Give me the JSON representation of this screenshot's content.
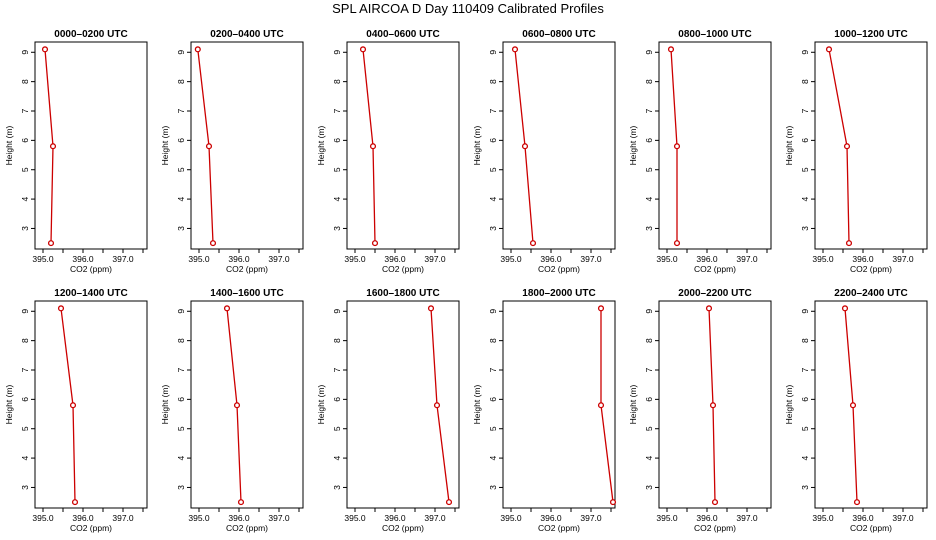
{
  "title": "SPL AIRCOA D  Day 110409  Calibrated Profiles",
  "style": {
    "series_color": "#cc0000",
    "axis_color": "#000000"
  },
  "chart_data": [
    {
      "type": "line",
      "title": "0000–0200 UTC",
      "xlabel": "CO2 (ppm)",
      "ylabel": "Height (m)",
      "xlim": [
        394.8,
        397.6
      ],
      "ylim": [
        2.3,
        9.35
      ],
      "xticks": [
        "395.0",
        "396.0",
        "397.0"
      ],
      "yticks": [
        "3",
        "4",
        "5",
        "6",
        "7",
        "8",
        "9"
      ],
      "series": [
        {
          "x": [
            395.2,
            395.25,
            395.05
          ],
          "y": [
            2.5,
            5.8,
            9.1
          ]
        }
      ]
    },
    {
      "type": "line",
      "title": "0200–0400 UTC",
      "xlabel": "CO2 (ppm)",
      "ylabel": "Height (m)",
      "xlim": [
        394.8,
        397.6
      ],
      "ylim": [
        2.3,
        9.35
      ],
      "xticks": [
        "395.0",
        "396.0",
        "397.0"
      ],
      "yticks": [
        "3",
        "4",
        "5",
        "6",
        "7",
        "8",
        "9"
      ],
      "series": [
        {
          "x": [
            395.35,
            395.25,
            394.97
          ],
          "y": [
            2.5,
            5.8,
            9.1
          ]
        }
      ]
    },
    {
      "type": "line",
      "title": "0400–0600 UTC",
      "xlabel": "CO2 (ppm)",
      "ylabel": "Height (m)",
      "xlim": [
        394.8,
        397.6
      ],
      "ylim": [
        2.3,
        9.35
      ],
      "xticks": [
        "395.0",
        "396.0",
        "397.0"
      ],
      "yticks": [
        "3",
        "4",
        "5",
        "6",
        "7",
        "8",
        "9"
      ],
      "series": [
        {
          "x": [
            395.5,
            395.45,
            395.2
          ],
          "y": [
            2.5,
            5.8,
            9.1
          ]
        }
      ]
    },
    {
      "type": "line",
      "title": "0600–0800 UTC",
      "xlabel": "CO2 (ppm)",
      "ylabel": "Height (m)",
      "xlim": [
        394.8,
        397.6
      ],
      "ylim": [
        2.3,
        9.35
      ],
      "xticks": [
        "395.0",
        "396.0",
        "397.0"
      ],
      "yticks": [
        "3",
        "4",
        "5",
        "6",
        "7",
        "8",
        "9"
      ],
      "series": [
        {
          "x": [
            395.55,
            395.35,
            395.1
          ],
          "y": [
            2.5,
            5.8,
            9.1
          ]
        }
      ]
    },
    {
      "type": "line",
      "title": "0800–1000 UTC",
      "xlabel": "CO2 (ppm)",
      "ylabel": "Height (m)",
      "xlim": [
        394.8,
        397.6
      ],
      "ylim": [
        2.3,
        9.35
      ],
      "xticks": [
        "395.0",
        "396.0",
        "397.0"
      ],
      "yticks": [
        "3",
        "4",
        "5",
        "6",
        "7",
        "8",
        "9"
      ],
      "series": [
        {
          "x": [
            395.25,
            395.25,
            395.1
          ],
          "y": [
            2.5,
            5.8,
            9.1
          ]
        }
      ]
    },
    {
      "type": "line",
      "title": "1000–1200 UTC",
      "xlabel": "CO2 (ppm)",
      "ylabel": "Height (m)",
      "xlim": [
        394.8,
        397.6
      ],
      "ylim": [
        2.3,
        9.35
      ],
      "xticks": [
        "395.0",
        "396.0",
        "397.0"
      ],
      "yticks": [
        "3",
        "4",
        "5",
        "6",
        "7",
        "8",
        "9"
      ],
      "series": [
        {
          "x": [
            395.65,
            395.6,
            395.15
          ],
          "y": [
            2.5,
            5.8,
            9.1
          ]
        }
      ]
    },
    {
      "type": "line",
      "title": "1200–1400 UTC",
      "xlabel": "CO2 (ppm)",
      "ylabel": "Height (m)",
      "xlim": [
        394.8,
        397.6
      ],
      "ylim": [
        2.3,
        9.35
      ],
      "xticks": [
        "395.0",
        "396.0",
        "397.0"
      ],
      "yticks": [
        "3",
        "4",
        "5",
        "6",
        "7",
        "8",
        "9"
      ],
      "series": [
        {
          "x": [
            395.8,
            395.75,
            395.45
          ],
          "y": [
            2.5,
            5.8,
            9.1
          ]
        }
      ]
    },
    {
      "type": "line",
      "title": "1400–1600 UTC",
      "xlabel": "CO2 (ppm)",
      "ylabel": "Height (m)",
      "xlim": [
        394.8,
        397.6
      ],
      "ylim": [
        2.3,
        9.35
      ],
      "xticks": [
        "395.0",
        "396.0",
        "397.0"
      ],
      "yticks": [
        "3",
        "4",
        "5",
        "6",
        "7",
        "8",
        "9"
      ],
      "series": [
        {
          "x": [
            396.05,
            395.95,
            395.7
          ],
          "y": [
            2.5,
            5.8,
            9.1
          ]
        }
      ]
    },
    {
      "type": "line",
      "title": "1600–1800 UTC",
      "xlabel": "CO2 (ppm)",
      "ylabel": "Height (m)",
      "xlim": [
        394.8,
        397.6
      ],
      "ylim": [
        2.3,
        9.35
      ],
      "xticks": [
        "395.0",
        "396.0",
        "397.0"
      ],
      "yticks": [
        "3",
        "4",
        "5",
        "6",
        "7",
        "8",
        "9"
      ],
      "series": [
        {
          "x": [
            397.35,
            397.05,
            396.9
          ],
          "y": [
            2.5,
            5.8,
            9.1
          ]
        }
      ]
    },
    {
      "type": "line",
      "title": "1800–2000 UTC",
      "xlabel": "CO2 (ppm)",
      "ylabel": "Height (m)",
      "xlim": [
        394.8,
        397.6
      ],
      "ylim": [
        2.3,
        9.35
      ],
      "xticks": [
        "395.0",
        "396.0",
        "397.0"
      ],
      "yticks": [
        "3",
        "4",
        "5",
        "6",
        "7",
        "8",
        "9"
      ],
      "series": [
        {
          "x": [
            397.55,
            397.25,
            397.25
          ],
          "y": [
            2.5,
            5.8,
            9.1
          ]
        }
      ]
    },
    {
      "type": "line",
      "title": "2000–2200 UTC",
      "xlabel": "CO2 (ppm)",
      "ylabel": "Height (m)",
      "xlim": [
        394.8,
        397.6
      ],
      "ylim": [
        2.3,
        9.35
      ],
      "xticks": [
        "395.0",
        "396.0",
        "397.0"
      ],
      "yticks": [
        "3",
        "4",
        "5",
        "6",
        "7",
        "8",
        "9"
      ],
      "series": [
        {
          "x": [
            396.2,
            396.15,
            396.05
          ],
          "y": [
            2.5,
            5.8,
            9.1
          ]
        }
      ]
    },
    {
      "type": "line",
      "title": "2200–2400 UTC",
      "xlabel": "CO2 (ppm)",
      "ylabel": "Height (m)",
      "xlim": [
        394.8,
        397.6
      ],
      "ylim": [
        2.3,
        9.35
      ],
      "xticks": [
        "395.0",
        "396.0",
        "397.0"
      ],
      "yticks": [
        "3",
        "4",
        "5",
        "6",
        "7",
        "8",
        "9"
      ],
      "series": [
        {
          "x": [
            395.85,
            395.75,
            395.55
          ],
          "y": [
            2.5,
            5.8,
            9.1
          ]
        }
      ]
    }
  ]
}
